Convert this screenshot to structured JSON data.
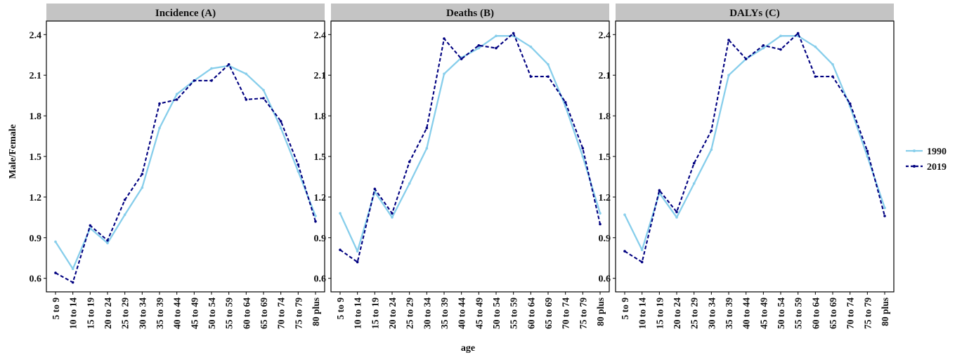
{
  "figure": {
    "ylabel": "Male/Female",
    "xlabel": "age",
    "legend": {
      "position": "right",
      "items": [
        {
          "label": "1990",
          "color": "#87CEEB",
          "dash": "solid"
        },
        {
          "label": "2019",
          "color": "#000080",
          "dash": "dashed"
        }
      ]
    }
  },
  "chart_data": [
    {
      "type": "line",
      "title": "Incidence (A)",
      "x": [
        "5 to 9",
        "10 to 14",
        "15 to 19",
        "20 to 24",
        "25 to 29",
        "30 to 34",
        "35 to 39",
        "40 to 44",
        "45 to 49",
        "50 to 54",
        "55 to 59",
        "60 to 64",
        "65 to 69",
        "70 to 74",
        "75 to 79",
        "80 plus"
      ],
      "xlabel": "age",
      "ylabel": "Male/Female",
      "ylim": [
        0.5,
        2.5
      ],
      "yticks": [
        0.6,
        0.9,
        1.2,
        1.5,
        1.8,
        2.1,
        2.4
      ],
      "series": [
        {
          "name": "1990",
          "values": [
            0.87,
            0.67,
            0.97,
            0.86,
            1.07,
            1.27,
            1.71,
            1.96,
            2.06,
            2.15,
            2.17,
            2.11,
            1.99,
            1.71,
            1.39,
            1.06
          ]
        },
        {
          "name": "2019",
          "values": [
            0.64,
            0.57,
            0.99,
            0.88,
            1.18,
            1.37,
            1.89,
            1.92,
            2.06,
            2.06,
            2.18,
            1.92,
            1.93,
            1.76,
            1.44,
            1.02
          ]
        }
      ]
    },
    {
      "type": "line",
      "title": "Deaths (B)",
      "x": [
        "5 to 9",
        "10 to 14",
        "15 to 19",
        "20 to 24",
        "25 to 29",
        "30 to 34",
        "35 to 39",
        "40 to 44",
        "45 to 49",
        "50 to 54",
        "55 to 59",
        "60 to 64",
        "65 to 69",
        "70 to 74",
        "75 to 79",
        "80 plus"
      ],
      "xlabel": "age",
      "ylabel": "Male/Female",
      "ylim": [
        0.5,
        2.5
      ],
      "yticks": [
        0.6,
        0.9,
        1.2,
        1.5,
        1.8,
        2.1,
        2.4
      ],
      "series": [
        {
          "name": "1990",
          "values": [
            1.08,
            0.8,
            1.24,
            1.05,
            1.3,
            1.56,
            2.11,
            2.23,
            2.3,
            2.39,
            2.39,
            2.31,
            2.18,
            1.87,
            1.5,
            1.08
          ]
        },
        {
          "name": "2019",
          "values": [
            0.81,
            0.72,
            1.26,
            1.08,
            1.46,
            1.71,
            2.37,
            2.22,
            2.32,
            2.3,
            2.41,
            2.09,
            2.09,
            1.9,
            1.56,
            1.0
          ]
        }
      ]
    },
    {
      "type": "line",
      "title": "DALYs (C)",
      "x": [
        "5 to 9",
        "10 to 14",
        "15 to 19",
        "20 to 24",
        "25 to 29",
        "30 to 34",
        "35 to 39",
        "40 to 44",
        "45 to 49",
        "50 to 54",
        "55 to 59",
        "60 to 64",
        "65 to 69",
        "70 to 74",
        "75 to 79",
        "80 plus"
      ],
      "xlabel": "age",
      "ylabel": "Male/Female",
      "ylim": [
        0.5,
        2.5
      ],
      "yticks": [
        0.6,
        0.9,
        1.2,
        1.5,
        1.8,
        2.1,
        2.4
      ],
      "series": [
        {
          "name": "1990",
          "values": [
            1.07,
            0.81,
            1.23,
            1.05,
            1.3,
            1.55,
            2.1,
            2.22,
            2.3,
            2.39,
            2.39,
            2.31,
            2.18,
            1.87,
            1.5,
            1.12
          ]
        },
        {
          "name": "2019",
          "values": [
            0.8,
            0.72,
            1.25,
            1.09,
            1.45,
            1.69,
            2.36,
            2.22,
            2.32,
            2.29,
            2.41,
            2.09,
            2.09,
            1.89,
            1.54,
            1.06
          ]
        }
      ]
    }
  ]
}
